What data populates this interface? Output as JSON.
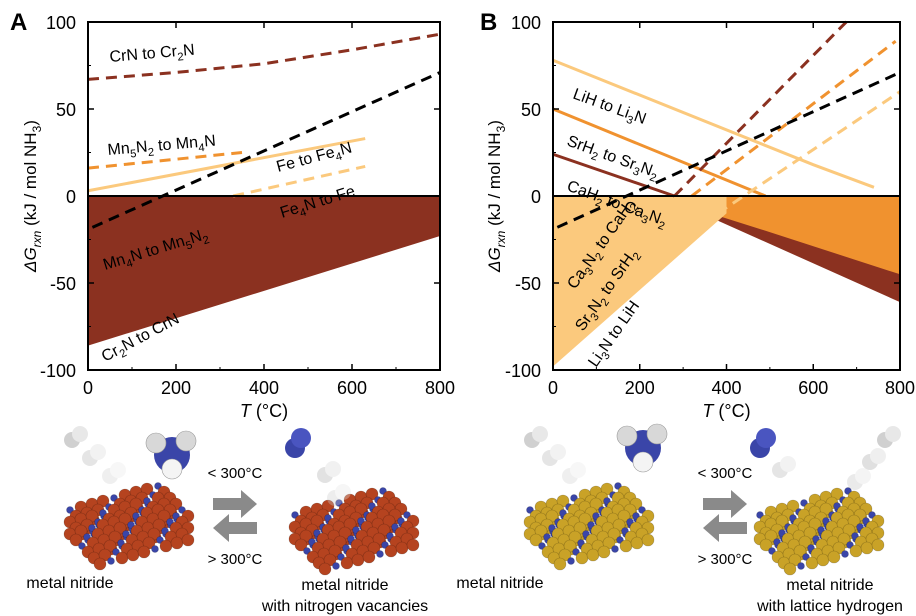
{
  "panels": [
    {
      "id": "A",
      "letter": "A",
      "ylabel": "ΔG",
      "ylabel_sub": "rxn",
      "ylabel_unit": " (kJ / mol NH",
      "ylabel_unit_sub": "3",
      "ylabel_close": ")",
      "xlabel_var": "T",
      "xlabel_unit": " (°C)",
      "yticks": [
        "100",
        "50",
        "0",
        "-50",
        "-100"
      ],
      "xticks": [
        "0",
        "200",
        "400",
        "600",
        "800"
      ],
      "reaction_labels": [
        {
          "parts": [
            "CrN to Cr",
            "2",
            "N"
          ]
        },
        {
          "parts": [
            "Mn",
            "5",
            "N",
            "2",
            " to Mn",
            "4",
            "N"
          ]
        },
        {
          "parts": [
            "Fe to Fe",
            "4",
            "N"
          ]
        },
        {
          "parts": [
            "Fe",
            "4",
            "N to Fe"
          ]
        },
        {
          "parts": [
            "Mn",
            "4",
            "N to Mn",
            "5",
            "N",
            "2"
          ]
        },
        {
          "parts": [
            "Cr",
            "2",
            "N to CrN"
          ]
        }
      ],
      "scheme": {
        "left_caption": "metal nitride",
        "right_caption_line1": "metal nitride",
        "right_caption_line2": "with nitrogen vacancies",
        "arrow_top": "< 300°C",
        "arrow_bottom": "> 300°C",
        "atom_color": "#b5431f"
      }
    },
    {
      "id": "B",
      "letter": "B",
      "ylabel": "ΔG",
      "ylabel_sub": "rxn",
      "ylabel_unit": " (kJ / mol NH",
      "ylabel_unit_sub": "3",
      "ylabel_close": ")",
      "xlabel_var": "T",
      "xlabel_unit": " (°C)",
      "yticks": [
        "100",
        "50",
        "0",
        "-50",
        "-100"
      ],
      "xticks": [
        "0",
        "200",
        "400",
        "600",
        "800"
      ],
      "reaction_labels": [
        {
          "parts": [
            "LiH to Li",
            "3",
            "N"
          ]
        },
        {
          "parts": [
            "SrH",
            "2",
            " to Sr",
            "3",
            "N",
            "2"
          ]
        },
        {
          "parts": [
            "CaH",
            "2",
            " to Ca",
            "3",
            "N",
            "2"
          ]
        },
        {
          "parts": [
            "Ca",
            "3",
            "N",
            "2",
            " to CaH",
            "2"
          ]
        },
        {
          "parts": [
            "Sr",
            "3",
            "N",
            "2",
            " to SrH",
            "2"
          ]
        },
        {
          "parts": [
            "Li",
            "3",
            "N to LiH"
          ]
        }
      ],
      "scheme": {
        "left_caption": "metal nitride",
        "right_caption_line1": "metal nitride",
        "right_caption_line2": "with lattice hydrogen",
        "arrow_top": "< 300°C",
        "arrow_bottom": "> 300°C",
        "atom_color": "#c9a227"
      }
    }
  ],
  "colors": {
    "cr": "#8b3120",
    "mn": "#f0922f",
    "fe": "#fbc97d",
    "ca": "#8b3120",
    "sr": "#f0922f",
    "li": "#fbc97d",
    "nh3_reference": "#000000",
    "nitrogen_atom": "#3a45a8",
    "hydrogen_atom": "#d8d8d8",
    "arrow": "#8a8a8a"
  },
  "chart_data": [
    {
      "panel": "A",
      "type": "line",
      "xlabel": "T (°C)",
      "ylabel": "ΔGrxn (kJ / mol NH3)",
      "xlim": [
        0,
        800
      ],
      "ylim": [
        -100,
        100
      ],
      "series": [
        {
          "name": "CrN to Cr2N",
          "style": "dashed",
          "color_key": "cr",
          "x": [
            0,
            200,
            400,
            600,
            800
          ],
          "y": [
            67,
            71,
            76,
            84,
            93
          ]
        },
        {
          "name": "Mn5N2 to Mn4N",
          "style": "dashed",
          "color_key": "mn",
          "x": [
            0,
            350
          ],
          "y": [
            16,
            25
          ]
        },
        {
          "name": "Fe to Fe4N",
          "style": "solid",
          "color_key": "fe",
          "x": [
            0,
            630
          ],
          "y": [
            3,
            33
          ]
        },
        {
          "name": "Fe4N to Fe",
          "style": "dashed",
          "color_key": "fe",
          "x": [
            330,
            630
          ],
          "y": [
            0,
            17
          ]
        },
        {
          "name": "NH3 decomposition",
          "style": "dashed",
          "color_key": "nh3_reference",
          "x": [
            10,
            800
          ],
          "y": [
            -18,
            71
          ]
        }
      ],
      "bands": [
        {
          "name": "Fe",
          "color_key": "fe",
          "x": [
            0,
            330
          ],
          "lower": [
            -20,
            0
          ],
          "upper": [
            0,
            0
          ]
        },
        {
          "name": "Mn4N to Mn5N2",
          "color_key": "mn",
          "x": [
            0,
            350
          ],
          "lower": [
            -36,
            0
          ],
          "upper": [
            0,
            0
          ]
        },
        {
          "name": "Cr2N to CrN",
          "color_key": "cr",
          "x": [
            0,
            800
          ],
          "lower": [
            -86,
            -23
          ],
          "upper": [
            0,
            0
          ]
        }
      ]
    },
    {
      "panel": "B",
      "type": "line",
      "xlabel": "T (°C)",
      "ylabel": "ΔGrxn (kJ / mol NH3)",
      "xlim": [
        0,
        800
      ],
      "ylim": [
        -100,
        100
      ],
      "series": [
        {
          "name": "LiH to Li3N",
          "style": "solid",
          "color_key": "li",
          "x": [
            0,
            600,
            740
          ],
          "y": [
            78,
            18,
            5
          ]
        },
        {
          "name": "SrH2 to Sr3N2",
          "style": "solid",
          "color_key": "sr",
          "x": [
            0,
            490
          ],
          "y": [
            50,
            0
          ]
        },
        {
          "name": "CaH2 to Ca3N2",
          "style": "solid",
          "color_key": "ca",
          "x": [
            0,
            280
          ],
          "y": [
            24,
            0
          ]
        },
        {
          "name": "Ca3N2 to CaH2",
          "style": "dashed",
          "color_key": "ca",
          "x": [
            280,
            680
          ],
          "y": [
            0,
            101
          ]
        },
        {
          "name": "Sr3N2 to SrH2",
          "style": "dashed",
          "color_key": "sr",
          "x": [
            320,
            790
          ],
          "y": [
            0,
            89
          ]
        },
        {
          "name": "Li3N to LiH",
          "style": "dashed",
          "color_key": "li",
          "x": [
            380,
            800
          ],
          "y": [
            -10,
            60
          ]
        },
        {
          "name": "NH3 decomposition",
          "style": "dashed",
          "color_key": "nh3_reference",
          "x": [
            10,
            800
          ],
          "y": [
            -18,
            71
          ]
        }
      ],
      "bands": [
        {
          "name": "Ca3N2 to CaH2",
          "color_key": "ca",
          "x": [
            0,
            280,
            800
          ],
          "lower": [
            -46,
            -3,
            -61
          ],
          "upper": [
            0,
            0,
            0
          ]
        },
        {
          "name": "Sr3N2 to SrH2",
          "color_key": "sr",
          "x": [
            0,
            300,
            490,
            800
          ],
          "lower": [
            -72,
            -5,
            -20,
            -45
          ],
          "upper": [
            0,
            0,
            0,
            0
          ]
        },
        {
          "name": "Li3N to LiH",
          "color_key": "li",
          "x": [
            0,
            400
          ],
          "lower": [
            -98,
            -10
          ],
          "upper": [
            0,
            0
          ]
        }
      ]
    }
  ]
}
